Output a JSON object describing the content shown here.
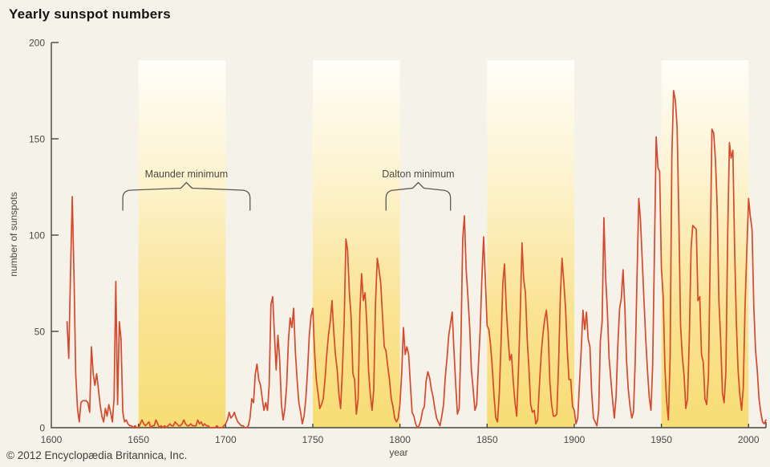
{
  "title": "Yearly sunspot numbers",
  "copyright": "© 2012 Encyclopædia Britannica, Inc.",
  "colors": {
    "background": "#f5f2ea",
    "line": "#d8482a",
    "axis": "#45443e",
    "tick_text": "#4a4a44",
    "band_top": "#fffef9",
    "band_mid": "#fdf3cf",
    "band_low": "#fae393",
    "band_bottom": "#f7dd74",
    "brace": "#5b5a52"
  },
  "chart_data": {
    "type": "line",
    "title": "Yearly sunspot numbers",
    "xlabel": "year",
    "ylabel": "number of sunspots",
    "xlim": [
      1600,
      2010
    ],
    "ylim": [
      0,
      200
    ],
    "x_ticks": [
      1600,
      1650,
      1700,
      1750,
      1800,
      1850,
      1900,
      1950,
      2000
    ],
    "y_ticks": [
      0,
      50,
      100,
      150,
      200
    ],
    "grid": false,
    "legend": "none",
    "bands": [
      {
        "from": 1650,
        "to": 1700
      },
      {
        "from": 1750,
        "to": 1800
      },
      {
        "from": 1850,
        "to": 1900
      },
      {
        "from": 1950,
        "to": 2000
      }
    ],
    "annotations": [
      {
        "label": "Maunder minimum",
        "from": 1641,
        "to": 1714
      },
      {
        "label": "Dalton minimum",
        "from": 1792,
        "to": 1829
      }
    ],
    "series": [
      {
        "name": "yearly sunspot number",
        "x_start": 1609,
        "x_step": 1,
        "values": [
          55,
          36,
          80,
          120,
          78,
          28,
          10,
          3,
          13,
          14,
          14,
          14,
          13,
          8,
          42,
          28,
          22,
          28,
          20,
          12,
          6,
          3,
          10,
          6,
          12,
          8,
          3,
          15,
          76,
          12,
          55,
          46,
          8,
          3,
          4,
          2,
          1,
          1,
          0,
          1,
          0,
          0,
          2,
          4,
          2,
          1,
          2,
          3,
          0,
          1,
          1,
          4,
          2,
          0,
          1,
          0,
          1,
          0,
          1,
          2,
          1,
          1,
          3,
          2,
          1,
          1,
          2,
          4,
          2,
          1,
          1,
          2,
          1,
          1,
          1,
          4,
          2,
          3,
          1,
          2,
          1,
          1,
          0,
          0,
          0,
          0,
          1,
          0,
          0,
          0,
          1,
          2,
          4,
          8,
          5,
          6,
          8,
          5,
          3,
          2,
          1,
          1,
          0,
          0,
          1,
          5,
          15,
          13,
          28,
          33,
          25,
          22,
          15,
          9,
          13,
          9,
          22,
          64,
          68,
          48,
          30,
          48,
          35,
          12,
          4,
          10,
          22,
          45,
          57,
          52,
          62,
          40,
          25,
          13,
          8,
          2,
          6,
          15,
          30,
          48,
          58,
          62,
          40,
          25,
          18,
          10,
          12,
          15,
          25,
          38,
          48,
          55,
          66,
          50,
          38,
          30,
          17,
          10,
          30,
          55,
          98,
          92,
          70,
          57,
          28,
          25,
          7,
          15,
          60,
          80,
          66,
          70,
          54,
          30,
          17,
          9,
          20,
          65,
          88,
          82,
          75,
          58,
          42,
          40,
          32,
          25,
          15,
          11,
          5,
          3,
          5,
          12,
          28,
          52,
          38,
          42,
          38,
          22,
          8,
          6,
          2,
          0,
          1,
          4,
          9,
          11,
          24,
          29,
          26,
          20,
          16,
          10,
          5,
          3,
          1,
          6,
          12,
          26,
          36,
          48,
          54,
          60,
          40,
          22,
          7,
          10,
          45,
          98,
          110,
          82,
          68,
          52,
          30,
          20,
          9,
          12,
          32,
          50,
          78,
          99,
          77,
          53,
          51,
          43,
          31,
          16,
          5,
          3,
          18,
          44,
          75,
          85,
          62,
          47,
          35,
          38,
          24,
          13,
          6,
          30,
          59,
          96,
          77,
          70,
          46,
          31,
          12,
          8,
          9,
          2,
          4,
          22,
          38,
          48,
          56,
          61,
          50,
          24,
          12,
          6,
          6,
          7,
          33,
          68,
          88,
          76,
          62,
          40,
          25,
          25,
          11,
          9,
          2,
          5,
          23,
          40,
          61,
          51,
          60,
          46,
          42,
          18,
          5,
          3,
          1,
          9,
          45,
          55,
          109,
          78,
          61,
          36,
          25,
          14,
          5,
          16,
          43,
          62,
          67,
          82,
          63,
          35,
          20,
          11,
          5,
          8,
          35,
          78,
          119,
          108,
          87,
          66,
          46,
          30,
          16,
          9,
          32,
          91,
          151,
          135,
          133,
          83,
          68,
          31,
          14,
          4,
          37,
          140,
          175,
          170,
          156,
          110,
          53,
          37,
          27,
          10,
          15,
          46,
          93,
          105,
          104,
          103,
          66,
          68,
          38,
          34,
          15,
          12,
          27,
          91,
          155,
          153,
          139,
          114,
          66,
          45,
          18,
          13,
          29,
          99,
          148,
          140,
          144,
          93,
          54,
          30,
          17,
          9,
          21,
          63,
          92,
          119,
          110,
          103,
          63,
          40,
          30,
          15,
          8,
          3,
          2,
          4
        ]
      }
    ]
  }
}
